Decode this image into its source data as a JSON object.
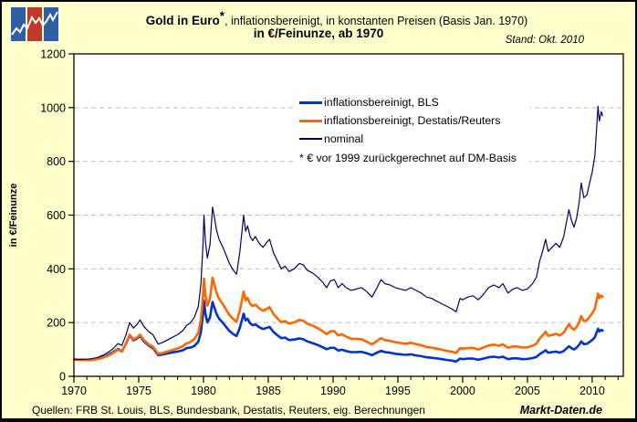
{
  "title": {
    "main_bold": "Gold in Euro",
    "main_asterisk": "*",
    "main_rest": ", inflationsbereinigt, in konstanten Preisen (Basis Jan. 1970)",
    "sub": "in €/Feinunze, ab 1970"
  },
  "stand": "Stand: Okt. 2010",
  "footer": {
    "sources": "Quellen: FRB St. Louis, BLS, Bundesbank, Destatis, Reuters, eig. Berechnungen",
    "brand": "Markt-Daten.de"
  },
  "logo": {
    "name": "markt-daten-logo",
    "tile_colors": [
      "#2E5FA3",
      "#C03A2B",
      "#2E5FA3"
    ],
    "line_color": "#FFFFFF"
  },
  "colors": {
    "page_background": "#FFFFCC",
    "plot_background": "#FFFFFF",
    "grid": "#BFBFBF",
    "axis": "#000000"
  },
  "chart_data": {
    "type": "line",
    "title": "Gold in Euro*, inflationsbereinigt, in konstanten Preisen (Basis Jan. 1970), in €/Feinunze, ab 1970",
    "xlabel": "",
    "ylabel": "in €/Feinunze",
    "xlim": [
      1970,
      2012.4
    ],
    "ylim": [
      0,
      1200
    ],
    "y_ticks": [
      0,
      200,
      400,
      600,
      800,
      1000,
      1200
    ],
    "x_ticks": [
      1970,
      1975,
      1980,
      1985,
      1990,
      1995,
      2000,
      2005,
      2010
    ],
    "grid": "horizontal, dashed, at 200..1000",
    "legend_position": "upper center",
    "annotation": "* € vor 1999 zurückgerechnet auf DM-Basis",
    "x": [
      1970.0,
      1970.5,
      1971.0,
      1971.4,
      1971.8,
      1972.2,
      1972.6,
      1973.0,
      1973.4,
      1973.7,
      1974.0,
      1974.3,
      1974.6,
      1974.9,
      1975.1,
      1975.4,
      1975.8,
      1976.1,
      1976.5,
      1976.8,
      1977.2,
      1977.6,
      1978.0,
      1978.4,
      1978.7,
      1979.0,
      1979.3,
      1979.6,
      1979.8,
      1979.95,
      1980.04,
      1980.15,
      1980.3,
      1980.5,
      1980.7,
      1980.85,
      1981.0,
      1981.2,
      1981.5,
      1981.8,
      1982.0,
      1982.3,
      1982.55,
      1982.8,
      1983.1,
      1983.25,
      1983.4,
      1983.6,
      1983.8,
      1984.0,
      1984.3,
      1984.6,
      1984.9,
      1985.1,
      1985.4,
      1985.7,
      1986.0,
      1986.3,
      1986.6,
      1987.0,
      1987.4,
      1987.7,
      1988.0,
      1988.4,
      1988.8,
      1989.2,
      1989.5,
      1989.8,
      1990.1,
      1990.4,
      1990.7,
      1991.0,
      1991.4,
      1991.8,
      1992.2,
      1992.6,
      1993.0,
      1993.4,
      1993.7,
      1994.0,
      1994.4,
      1994.8,
      1995.2,
      1995.6,
      1996.0,
      1996.4,
      1996.8,
      1997.2,
      1997.6,
      1998.0,
      1998.4,
      1998.8,
      1999.2,
      1999.5,
      1999.8,
      2000.0,
      2000.4,
      2000.8,
      2001.2,
      2001.6,
      2002.0,
      2002.4,
      2002.8,
      2003.1,
      2003.5,
      2003.9,
      2004.2,
      2004.6,
      2005.0,
      2005.4,
      2005.7,
      2005.95,
      2006.2,
      2006.4,
      2006.6,
      2006.9,
      2007.2,
      2007.5,
      2007.8,
      2008.0,
      2008.2,
      2008.4,
      2008.6,
      2008.8,
      2009.0,
      2009.15,
      2009.35,
      2009.6,
      2009.8,
      2010.0,
      2010.2,
      2010.45,
      2010.55,
      2010.7,
      2010.8
    ],
    "series": [
      {
        "name": "inflationsbereinigt, BLS",
        "color": "#0033CC",
        "width": 2.6,
        "values": [
          63,
          62,
          61,
          62,
          65,
          71,
          79,
          89,
          102,
          93,
          120,
          153,
          134,
          142,
          151,
          130,
          114,
          105,
          79,
          81,
          85,
          89,
          92,
          97,
          105,
          107,
          113,
          129,
          164,
          227,
          281,
          232,
          201,
          219,
          277,
          255,
          233,
          215,
          199,
          181,
          169,
          157,
          150,
          180,
          233,
          208,
          214,
          197,
          190,
          194,
          183,
          176,
          181,
          184,
          165,
          153,
          142,
          144,
          135,
          137,
          141,
          138,
          130,
          124,
          117,
          108,
          101,
          106,
          106,
          96,
          99,
          94,
          90,
          90,
          91,
          86,
          79,
          88,
          95,
          90,
          88,
          84,
          82,
          80,
          82,
          78,
          75,
          71,
          69,
          67,
          64,
          61,
          58,
          55,
          66,
          64,
          66,
          66,
          62,
          66,
          71,
          73,
          70,
          73,
          64,
          67,
          67,
          64,
          65,
          68,
          72,
          83,
          90,
          97,
          88,
          90,
          92,
          88,
          94,
          103,
          112,
          105,
          100,
          107,
          118,
          130,
          120,
          121,
          128,
          135,
          145,
          177,
          167,
          173,
          170
        ]
      },
      {
        "name": "inflationsbereinigt, Destatis/Reuters",
        "color": "#FF6600",
        "width": 2.6,
        "values": [
          63,
          61,
          61,
          61,
          64,
          69,
          76,
          86,
          100,
          92,
          120,
          155,
          137,
          146,
          155,
          135,
          118,
          110,
          84,
          86,
          92,
          98,
          104,
          112,
          123,
          128,
          139,
          162,
          209,
          293,
          364,
          301,
          263,
          289,
          367,
          341,
          312,
          289,
          268,
          244,
          228,
          213,
          203,
          244,
          315,
          283,
          292,
          270,
          261,
          267,
          253,
          244,
          252,
          257,
          231,
          216,
          201,
          206,
          196,
          201,
          210,
          207,
          196,
          189,
          180,
          168,
          157,
          168,
          168,
          152,
          157,
          148,
          140,
          139,
          138,
          129,
          119,
          132,
          142,
          135,
          132,
          127,
          124,
          121,
          125,
          120,
          116,
          109,
          107,
          103,
          99,
          95,
          91,
          87,
          105,
          103,
          105,
          106,
          100,
          107,
          115,
          118,
          114,
          119,
          106,
          111,
          111,
          107,
          108,
          114,
          122,
          141,
          154,
          166,
          151,
          154,
          158,
          152,
          163,
          178,
          194,
          181,
          173,
          184,
          202,
          224,
          206,
          209,
          222,
          234,
          252,
          308,
          291,
          301,
          296
        ]
      },
      {
        "name": "nominal",
        "color": "#000066",
        "width": 1.2,
        "values": [
          63,
          63,
          64,
          66,
          70,
          78,
          88,
          102,
          122,
          115,
          152,
          200,
          180,
          195,
          210,
          185,
          165,
          155,
          120,
          125,
          135,
          145,
          155,
          170,
          190,
          200,
          220,
          260,
          340,
          480,
          600,
          500,
          440,
          490,
          630,
          590,
          545,
          510,
          480,
          445,
          420,
          395,
          380,
          460,
          600,
          540,
          560,
          520,
          505,
          520,
          495,
          480,
          500,
          510,
          460,
          430,
          400,
          410,
          390,
          400,
          420,
          415,
          395,
          385,
          370,
          350,
          330,
          355,
          360,
          330,
          345,
          330,
          320,
          325,
          330,
          315,
          295,
          330,
          360,
          345,
          340,
          330,
          325,
          320,
          330,
          320,
          310,
          295,
          290,
          280,
          270,
          260,
          250,
          240,
          290,
          285,
          295,
          300,
          285,
          305,
          330,
          340,
          330,
          345,
          310,
          325,
          330,
          320,
          325,
          345,
          370,
          430,
          470,
          510,
          465,
          480,
          495,
          480,
          520,
          570,
          620,
          580,
          555,
          590,
          650,
          720,
          665,
          675,
          720,
          760,
          820,
          1005,
          950,
          985,
          970
        ]
      }
    ]
  }
}
